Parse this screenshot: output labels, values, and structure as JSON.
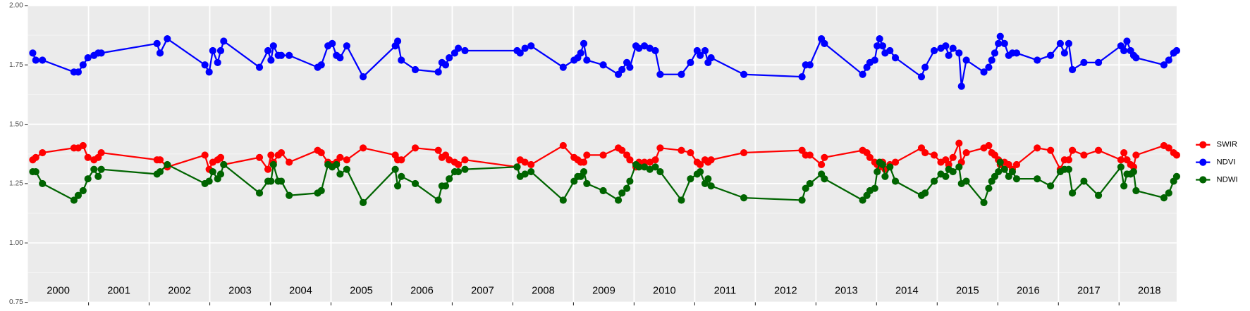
{
  "chart_data": {
    "type": "line",
    "x": [
      2000.08,
      2000.13,
      2000.24,
      2000.76,
      2000.83,
      2000.91,
      2000.99,
      2001.09,
      2001.16,
      2001.21,
      2002.13,
      2002.18,
      2002.3,
      2002.92,
      2002.99,
      2003.05,
      2003.13,
      2003.18,
      2003.23,
      2003.82,
      2003.96,
      2004.01,
      2004.05,
      2004.13,
      2004.18,
      2004.31,
      2004.78,
      2004.84,
      2004.95,
      2005.02,
      2005.09,
      2005.15,
      2005.26,
      2005.53,
      2006.06,
      2006.1,
      2006.16,
      2006.39,
      2006.77,
      2006.83,
      2006.89,
      2006.95,
      2007.04,
      2007.1,
      2007.21,
      2008.07,
      2008.12,
      2008.2,
      2008.3,
      2008.83,
      2009.01,
      2009.07,
      2009.12,
      2009.17,
      2009.22,
      2009.49,
      2009.74,
      2009.8,
      2009.88,
      2009.93,
      2010.03,
      2010.08,
      2010.17,
      2010.26,
      2010.35,
      2010.43,
      2010.78,
      2010.93,
      2011.04,
      2011.09,
      2011.17,
      2011.22,
      2011.27,
      2011.81,
      2012.77,
      2012.83,
      2012.9,
      2013.09,
      2013.14,
      2013.77,
      2013.84,
      2013.89,
      2013.97,
      2014.01,
      2014.05,
      2014.1,
      2014.14,
      2014.22,
      2014.31,
      2014.74,
      2014.8,
      2014.95,
      2015.06,
      2015.14,
      2015.19,
      2015.26,
      2015.36,
      2015.4,
      2015.48,
      2015.77,
      2015.85,
      2015.9,
      2015.95,
      2016.01,
      2016.04,
      2016.11,
      2016.18,
      2016.24,
      2016.31,
      2016.65,
      2016.87,
      2017.03,
      2017.1,
      2017.17,
      2017.23,
      2017.42,
      2017.66,
      2018.03,
      2018.08,
      2018.13,
      2018.19,
      2018.24,
      2018.28,
      2018.74,
      2018.82,
      2018.9,
      2018.95
    ],
    "series": [
      {
        "name": "SWIR",
        "color": "#ff0000",
        "values": [
          1.35,
          1.36,
          1.38,
          1.4,
          1.4,
          1.41,
          1.36,
          1.35,
          1.36,
          1.38,
          1.35,
          1.35,
          1.32,
          1.37,
          1.31,
          1.34,
          1.35,
          1.36,
          1.33,
          1.36,
          1.31,
          1.37,
          1.34,
          1.37,
          1.38,
          1.34,
          1.39,
          1.38,
          1.34,
          1.33,
          1.34,
          1.36,
          1.35,
          1.4,
          1.37,
          1.35,
          1.35,
          1.4,
          1.39,
          1.36,
          1.37,
          1.35,
          1.34,
          1.33,
          1.35,
          1.32,
          1.35,
          1.34,
          1.33,
          1.41,
          1.36,
          1.35,
          1.34,
          1.34,
          1.37,
          1.37,
          1.4,
          1.39,
          1.37,
          1.35,
          1.32,
          1.34,
          1.34,
          1.34,
          1.35,
          1.4,
          1.39,
          1.38,
          1.34,
          1.33,
          1.35,
          1.34,
          1.35,
          1.38,
          1.39,
          1.37,
          1.37,
          1.33,
          1.36,
          1.39,
          1.38,
          1.36,
          1.34,
          1.33,
          1.32,
          1.34,
          1.31,
          1.33,
          1.34,
          1.4,
          1.38,
          1.37,
          1.34,
          1.35,
          1.33,
          1.36,
          1.42,
          1.34,
          1.38,
          1.4,
          1.41,
          1.38,
          1.37,
          1.35,
          1.33,
          1.34,
          1.33,
          1.31,
          1.33,
          1.4,
          1.39,
          1.31,
          1.35,
          1.35,
          1.39,
          1.37,
          1.39,
          1.35,
          1.38,
          1.35,
          1.33,
          1.32,
          1.37,
          1.41,
          1.4,
          1.38,
          1.37
        ]
      },
      {
        "name": "NDVI",
        "color": "#0000ff",
        "values": [
          1.8,
          1.77,
          1.77,
          1.72,
          1.72,
          1.75,
          1.78,
          1.79,
          1.8,
          1.8,
          1.84,
          1.8,
          1.86,
          1.75,
          1.72,
          1.81,
          1.76,
          1.81,
          1.85,
          1.74,
          1.81,
          1.77,
          1.83,
          1.79,
          1.79,
          1.79,
          1.74,
          1.75,
          1.83,
          1.84,
          1.79,
          1.78,
          1.83,
          1.7,
          1.83,
          1.85,
          1.77,
          1.73,
          1.72,
          1.76,
          1.75,
          1.78,
          1.8,
          1.82,
          1.81,
          1.81,
          1.8,
          1.82,
          1.83,
          1.74,
          1.77,
          1.78,
          1.8,
          1.84,
          1.77,
          1.75,
          1.71,
          1.73,
          1.76,
          1.74,
          1.83,
          1.82,
          1.83,
          1.82,
          1.81,
          1.71,
          1.71,
          1.76,
          1.81,
          1.79,
          1.81,
          1.76,
          1.78,
          1.71,
          1.7,
          1.75,
          1.75,
          1.86,
          1.84,
          1.71,
          1.74,
          1.76,
          1.77,
          1.83,
          1.86,
          1.83,
          1.8,
          1.81,
          1.78,
          1.7,
          1.74,
          1.81,
          1.82,
          1.83,
          1.79,
          1.82,
          1.8,
          1.66,
          1.77,
          1.72,
          1.74,
          1.77,
          1.8,
          1.84,
          1.87,
          1.84,
          1.79,
          1.8,
          1.8,
          1.77,
          1.79,
          1.84,
          1.8,
          1.84,
          1.73,
          1.76,
          1.76,
          1.83,
          1.81,
          1.85,
          1.81,
          1.79,
          1.78,
          1.75,
          1.77,
          1.8,
          1.81
        ]
      },
      {
        "name": "NDWI",
        "color": "#006400",
        "values": [
          1.3,
          1.3,
          1.25,
          1.18,
          1.2,
          1.22,
          1.27,
          1.31,
          1.28,
          1.31,
          1.29,
          1.3,
          1.33,
          1.25,
          1.26,
          1.3,
          1.27,
          1.29,
          1.33,
          1.21,
          1.26,
          1.26,
          1.33,
          1.26,
          1.26,
          1.2,
          1.21,
          1.22,
          1.33,
          1.32,
          1.33,
          1.29,
          1.31,
          1.17,
          1.31,
          1.24,
          1.28,
          1.25,
          1.18,
          1.24,
          1.24,
          1.27,
          1.3,
          1.3,
          1.31,
          1.32,
          1.28,
          1.29,
          1.3,
          1.18,
          1.26,
          1.28,
          1.28,
          1.3,
          1.25,
          1.22,
          1.18,
          1.21,
          1.23,
          1.26,
          1.33,
          1.32,
          1.32,
          1.31,
          1.32,
          1.3,
          1.18,
          1.27,
          1.29,
          1.3,
          1.25,
          1.27,
          1.24,
          1.19,
          1.18,
          1.23,
          1.25,
          1.29,
          1.27,
          1.18,
          1.2,
          1.22,
          1.23,
          1.3,
          1.34,
          1.33,
          1.28,
          1.32,
          1.26,
          1.2,
          1.21,
          1.26,
          1.29,
          1.28,
          1.31,
          1.3,
          1.32,
          1.25,
          1.26,
          1.17,
          1.23,
          1.26,
          1.28,
          1.3,
          1.34,
          1.31,
          1.28,
          1.3,
          1.27,
          1.27,
          1.24,
          1.3,
          1.31,
          1.31,
          1.21,
          1.26,
          1.2,
          1.32,
          1.24,
          1.29,
          1.29,
          1.3,
          1.22,
          1.19,
          1.21,
          1.26,
          1.28
        ]
      }
    ],
    "xlim": [
      2000,
      2018.95
    ],
    "xticks": [
      {
        "value": 2000.5,
        "label": "2000"
      },
      {
        "value": 2001.5,
        "label": "2001"
      },
      {
        "value": 2002.5,
        "label": "2002"
      },
      {
        "value": 2003.5,
        "label": "2003"
      },
      {
        "value": 2004.5,
        "label": "2004"
      },
      {
        "value": 2005.5,
        "label": "2005"
      },
      {
        "value": 2006.5,
        "label": "2006"
      },
      {
        "value": 2007.5,
        "label": "2007"
      },
      {
        "value": 2008.5,
        "label": "2008"
      },
      {
        "value": 2009.5,
        "label": "2009"
      },
      {
        "value": 2010.5,
        "label": "2010"
      },
      {
        "value": 2011.5,
        "label": "2011"
      },
      {
        "value": 2012.5,
        "label": "2012"
      },
      {
        "value": 2013.5,
        "label": "2013"
      },
      {
        "value": 2014.5,
        "label": "2014"
      },
      {
        "value": 2015.5,
        "label": "2015"
      },
      {
        "value": 2016.5,
        "label": "2016"
      },
      {
        "value": 2017.5,
        "label": "2017"
      },
      {
        "value": 2018.5,
        "label": "2018"
      }
    ],
    "year_boundaries": [
      2001,
      2002,
      2003,
      2004,
      2005,
      2006,
      2007,
      2008,
      2009,
      2010,
      2011,
      2012,
      2013,
      2014,
      2015,
      2016,
      2017,
      2018
    ],
    "ylim": [
      0.75,
      2.0
    ],
    "yticks": [
      {
        "value": 0.75,
        "label": "0.75"
      },
      {
        "value": 1.0,
        "label": "1.00"
      },
      {
        "value": 1.25,
        "label": "1.25"
      },
      {
        "value": 1.5,
        "label": "1.50"
      },
      {
        "value": 1.75,
        "label": "1.75"
      },
      {
        "value": 2.0,
        "label": "2.00"
      }
    ],
    "y_minor_grid": [
      0.875,
      1.125,
      1.375,
      1.625,
      1.875
    ],
    "grid": true,
    "legend": "right"
  }
}
